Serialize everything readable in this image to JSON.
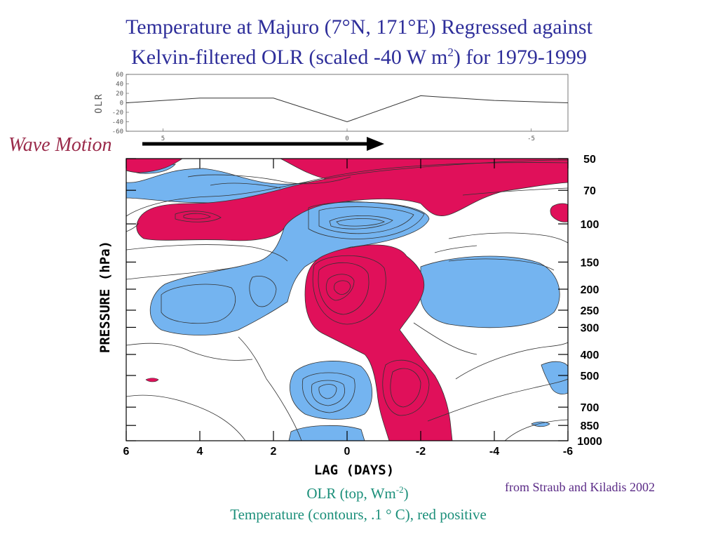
{
  "title": {
    "line1": "Temperature at Majuro (7°N, 171°E) Regressed against",
    "line2_pre": "Kelvin-filtered OLR (scaled -40 W m",
    "line2_sup": "2",
    "line2_post": ") for 1979-1999"
  },
  "wave_label": "Wave Motion",
  "source": "from Straub and Kiladis 2002",
  "caption": {
    "line1_pre": "OLR (top, Wm",
    "line1_sup": "-2",
    "line1_post": ")",
    "line2": "Temperature (contours, .1 ° C), red positive"
  },
  "colors": {
    "title": "#2e2e9a",
    "positive_fill": "#e0105a",
    "negative_fill": "#74b4f0",
    "wave_label": "#9a2a4a",
    "caption": "#1b8f7a",
    "source": "#5a2a86"
  },
  "chart_data": [
    {
      "type": "line",
      "panel": "olr",
      "ylabel": "OLR",
      "x": [
        6,
        4,
        2,
        0,
        -2,
        -4,
        -6
      ],
      "values": [
        0,
        10,
        10,
        -40,
        15,
        5,
        0
      ],
      "yticks": [
        "60",
        "40",
        "20",
        "0",
        "-20",
        "-40",
        "-60"
      ],
      "ylim": [
        -60,
        60
      ],
      "xticks": [
        "5",
        "0",
        "-5"
      ],
      "xlim": [
        6,
        -6
      ]
    },
    {
      "type": "heatmap",
      "panel": "temperature",
      "xlabel": "LAG (DAYS)",
      "ylabel": "PRESSURE (hPa)",
      "xticks": [
        "6",
        "4",
        "2",
        "0",
        "-2",
        "-4",
        "-6"
      ],
      "xlim": [
        6,
        -6
      ],
      "pressure_levels": [
        "50",
        "70",
        "100",
        "150",
        "200",
        "250",
        "300",
        "400",
        "500",
        "700",
        "850",
        "1000"
      ],
      "ylim": [
        50,
        1000
      ],
      "y_scale": "log",
      "legend": "red positive, blue negative"
    }
  ]
}
